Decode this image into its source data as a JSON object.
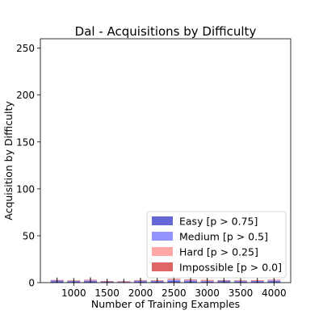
{
  "chart_data": {
    "type": "bar",
    "title": "Dal - Acquisitions by Difficulty",
    "xlabel": "Number of Training Examples",
    "ylabel": "Acquisition by Difficulty",
    "xlim": [
      500,
      4250
    ],
    "ylim": [
      0,
      260
    ],
    "xticks": [
      1000,
      1500,
      2000,
      2500,
      3000,
      3500,
      4000
    ],
    "yticks": [
      0,
      50,
      100,
      150,
      200,
      250
    ],
    "legend_position": "lower-right",
    "grid": false,
    "x": [
      750,
      1000,
      1250,
      1500,
      1750,
      2000,
      2250,
      2500,
      2750,
      3000,
      3250,
      3500,
      3750,
      4000
    ],
    "series": [
      {
        "name": "Easy [p > 0.75]",
        "color": "#0000bb",
        "values": [
          1.5,
          1.2,
          1.5,
          0.8,
          0.6,
          1.2,
          1.2,
          1.8,
          1.5,
          1.0,
          1.5,
          1.0,
          1.2,
          1.5
        ]
      },
      {
        "name": "Medium [p > 0.5]",
        "color": "#4b4bff",
        "values": [
          0.8,
          0.6,
          0.8,
          0.4,
          0.4,
          0.8,
          0.6,
          1.0,
          0.8,
          0.7,
          0.6,
          0.8,
          0.7,
          0.8
        ]
      },
      {
        "name": "Hard [p > 0.25]",
        "color": "#ff6a6a",
        "values": [
          0.3,
          0.3,
          0.4,
          0.2,
          0.2,
          0.4,
          0.4,
          0.6,
          0.5,
          0.5,
          0.3,
          0.3,
          0.4,
          0.4
        ]
      },
      {
        "name": "Impossible [p > 0.0]",
        "color": "#c80000",
        "values": [
          0.2,
          0.2,
          0.3,
          0.1,
          0.1,
          0.3,
          0.3,
          0.6,
          0.6,
          0.6,
          0.2,
          0.2,
          0.3,
          0.3
        ]
      }
    ]
  }
}
